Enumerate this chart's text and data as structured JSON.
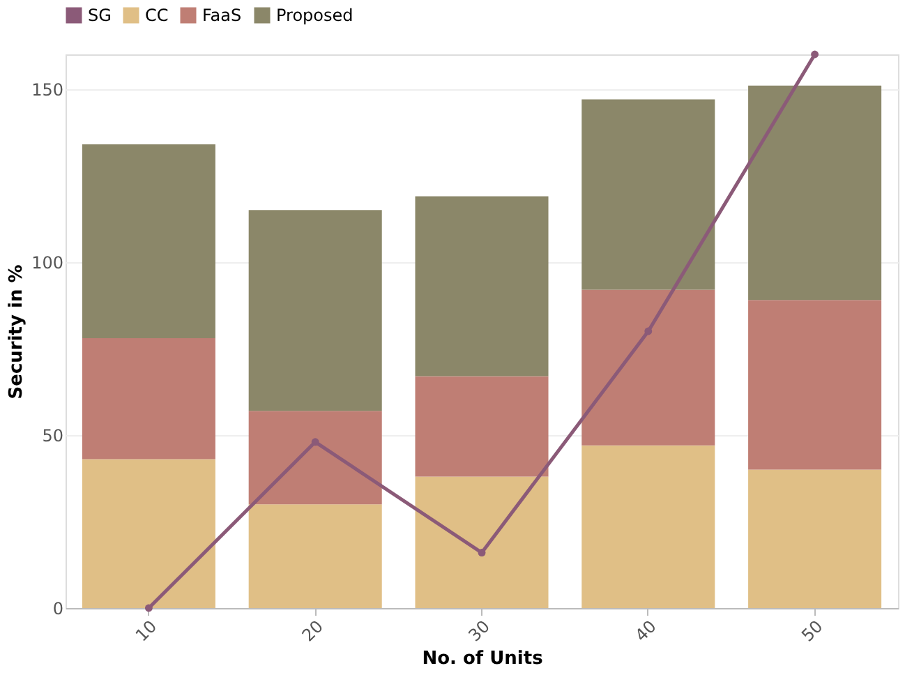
{
  "chart_data": {
    "type": "bar",
    "stacked": true,
    "xlabel": "No. of Units",
    "ylabel": "Security in %",
    "categories": [
      "10",
      "20",
      "30",
      "40",
      "50"
    ],
    "series": [
      {
        "name": "SG",
        "type": "line",
        "color": "#8b5a78",
        "values": [
          0,
          48,
          16,
          80,
          160
        ],
        "marker": "circle"
      },
      {
        "name": "CC",
        "color": "#e0bf86",
        "values": [
          43,
          30,
          38,
          47,
          40
        ]
      },
      {
        "name": "FaaS",
        "color": "#bf7e74",
        "values": [
          35,
          27,
          29,
          45,
          49
        ]
      },
      {
        "name": "Proposed",
        "color": "#8b8769",
        "values": [
          56,
          58,
          52,
          55,
          62
        ]
      }
    ],
    "ylim": [
      0,
      160
    ],
    "yticks": [
      0,
      50,
      100,
      150
    ],
    "grid": "y",
    "legend": "top left"
  }
}
